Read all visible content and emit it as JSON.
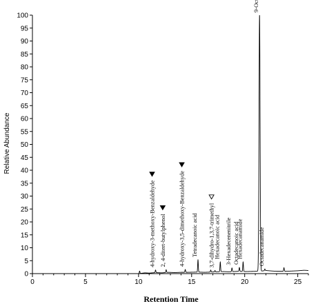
{
  "chart_data": {
    "type": "line",
    "xlabel": "Retention Time",
    "ylabel": "Relative Abundance",
    "xlim": [
      0,
      26
    ],
    "ylim": [
      0,
      100
    ],
    "x_ticks": [
      0,
      5,
      10,
      15,
      20,
      25
    ],
    "y_ticks": [
      0,
      5,
      10,
      15,
      20,
      25,
      30,
      35,
      40,
      45,
      50,
      55,
      60,
      65,
      70,
      75,
      80,
      85,
      90,
      95,
      100
    ],
    "baseline": {
      "x": [
        0,
        10.0,
        10.6,
        11.0,
        11.6,
        12.2,
        12.8,
        13.4,
        14.0,
        14.6,
        15.6,
        16.2,
        17.4,
        18.0,
        18.5,
        19.4,
        20.1,
        21.0,
        21.6,
        22.0,
        22.6,
        23.0,
        23.9,
        24.5,
        25.0,
        25.6,
        26.0
      ],
      "y": [
        0,
        0,
        0.3,
        0.2,
        0.4,
        0.3,
        0.5,
        0.4,
        0.5,
        0.5,
        0.6,
        0.5,
        0.7,
        0.8,
        0.7,
        0.9,
        0.8,
        0.9,
        1.0,
        1.2,
        1.0,
        0.9,
        0.9,
        1.0,
        1.1,
        1.3,
        1.2
      ]
    },
    "peaks": [
      {
        "rt": 10.1,
        "abundance": 1.0
      },
      {
        "rt": 11.6,
        "abundance": 1.4,
        "label": "4-hydroxy-3-methoxy-Benzaldehyde",
        "marker": "filled"
      },
      {
        "rt": 12.6,
        "abundance": 1.5,
        "label": "2, 4-ditert-butylphenol",
        "marker": "filled"
      },
      {
        "rt": 14.4,
        "abundance": 1.6,
        "label": "4-hydroxy-3,5-dimethoxy-Benzaldehyde",
        "marker": "filled"
      },
      {
        "rt": 15.6,
        "abundance": 5.3,
        "label": "Tetradecanoic acid"
      },
      {
        "rt": 16.8,
        "abundance": 1.4
      },
      {
        "rt": 17.2,
        "abundance": 1.2,
        "label": "3,7-dihydro-1,3,7-trimethyl",
        "marker": "open"
      },
      {
        "rt": 17.7,
        "abundance": 4.5,
        "label": "Hexadecanoic acid"
      },
      {
        "rt": 18.8,
        "abundance": 2.2,
        "label": "3-Hexadecenenitrile"
      },
      {
        "rt": 19.5,
        "abundance": 2.4,
        "label": "Octadecanoic acid"
      },
      {
        "rt": 19.85,
        "abundance": 4.5,
        "label": "Hexadecanamide"
      },
      {
        "rt": 21.4,
        "abundance": 100,
        "label": "9-Octadecenamide"
      },
      {
        "rt": 21.9,
        "abundance": 1.8,
        "label": "Octadecanamide"
      },
      {
        "rt": 23.7,
        "abundance": 2.3
      }
    ]
  }
}
